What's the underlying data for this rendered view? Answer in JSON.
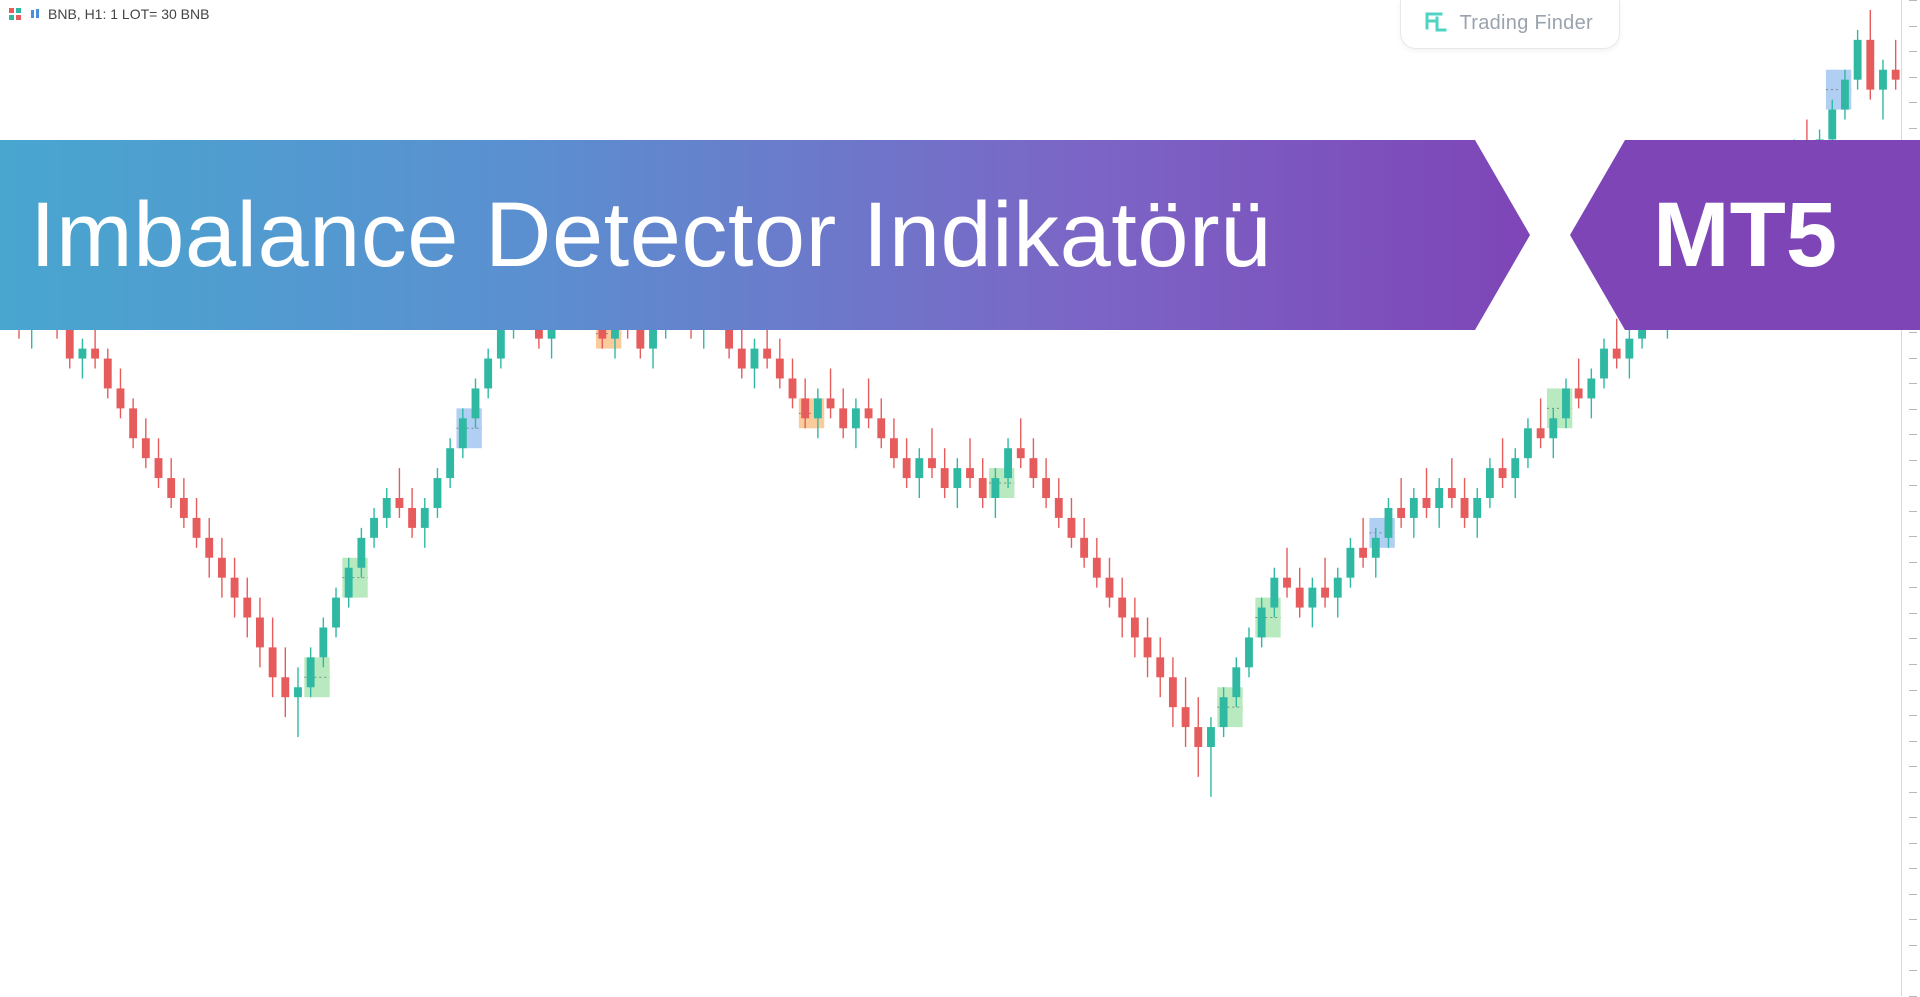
{
  "symbol_label": "BNB, H1:  1 LOT= 30 BNB",
  "brand_text": "Trading Finder",
  "title_main": "Imbalance Detector Indikatörü",
  "title_badge": "MT5",
  "chart": {
    "type": "candlestick",
    "background_color": "#ffffff",
    "bull_color": "#2fb9a3",
    "bear_color": "#e65b5b",
    "wick_bull": "#2fb9a3",
    "wick_bear": "#e65b5b",
    "zone_bull": "#7fd98a",
    "zone_bear": "#f5a34a",
    "zone_blue": "#6fa8e8",
    "axis_tick_color": "#b8b8b8",
    "y_min": 0,
    "y_max": 100,
    "candles": [
      {
        "o": 70,
        "h": 72,
        "l": 68,
        "c": 69
      },
      {
        "o": 69,
        "h": 70,
        "l": 66,
        "c": 67
      },
      {
        "o": 67,
        "h": 69,
        "l": 65,
        "c": 68
      },
      {
        "o": 68,
        "h": 71,
        "l": 67,
        "c": 70
      },
      {
        "o": 70,
        "h": 71,
        "l": 66,
        "c": 67
      },
      {
        "o": 67,
        "h": 68,
        "l": 63,
        "c": 64
      },
      {
        "o": 64,
        "h": 66,
        "l": 62,
        "c": 65
      },
      {
        "o": 65,
        "h": 67,
        "l": 63,
        "c": 64
      },
      {
        "o": 64,
        "h": 65,
        "l": 60,
        "c": 61
      },
      {
        "o": 61,
        "h": 63,
        "l": 58,
        "c": 59
      },
      {
        "o": 59,
        "h": 60,
        "l": 55,
        "c": 56
      },
      {
        "o": 56,
        "h": 58,
        "l": 53,
        "c": 54
      },
      {
        "o": 54,
        "h": 56,
        "l": 51,
        "c": 52
      },
      {
        "o": 52,
        "h": 54,
        "l": 49,
        "c": 50
      },
      {
        "o": 50,
        "h": 52,
        "l": 47,
        "c": 48
      },
      {
        "o": 48,
        "h": 50,
        "l": 45,
        "c": 46
      },
      {
        "o": 46,
        "h": 48,
        "l": 42,
        "c": 44
      },
      {
        "o": 44,
        "h": 46,
        "l": 40,
        "c": 42
      },
      {
        "o": 42,
        "h": 44,
        "l": 38,
        "c": 40
      },
      {
        "o": 40,
        "h": 42,
        "l": 36,
        "c": 38
      },
      {
        "o": 38,
        "h": 40,
        "l": 33,
        "c": 35
      },
      {
        "o": 35,
        "h": 38,
        "l": 30,
        "c": 32
      },
      {
        "o": 32,
        "h": 35,
        "l": 28,
        "c": 30
      },
      {
        "o": 30,
        "h": 33,
        "l": 26,
        "c": 31
      },
      {
        "o": 31,
        "h": 35,
        "l": 30,
        "c": 34
      },
      {
        "o": 34,
        "h": 38,
        "l": 33,
        "c": 37
      },
      {
        "o": 37,
        "h": 41,
        "l": 36,
        "c": 40
      },
      {
        "o": 40,
        "h": 44,
        "l": 39,
        "c": 43
      },
      {
        "o": 43,
        "h": 47,
        "l": 42,
        "c": 46
      },
      {
        "o": 46,
        "h": 49,
        "l": 45,
        "c": 48
      },
      {
        "o": 48,
        "h": 51,
        "l": 47,
        "c": 50
      },
      {
        "o": 50,
        "h": 53,
        "l": 48,
        "c": 49
      },
      {
        "o": 49,
        "h": 51,
        "l": 46,
        "c": 47
      },
      {
        "o": 47,
        "h": 50,
        "l": 45,
        "c": 49
      },
      {
        "o": 49,
        "h": 53,
        "l": 48,
        "c": 52
      },
      {
        "o": 52,
        "h": 56,
        "l": 51,
        "c": 55
      },
      {
        "o": 55,
        "h": 59,
        "l": 54,
        "c": 58
      },
      {
        "o": 58,
        "h": 62,
        "l": 57,
        "c": 61
      },
      {
        "o": 61,
        "h": 65,
        "l": 60,
        "c": 64
      },
      {
        "o": 64,
        "h": 68,
        "l": 63,
        "c": 67
      },
      {
        "o": 67,
        "h": 70,
        "l": 66,
        "c": 69
      },
      {
        "o": 69,
        "h": 72,
        "l": 67,
        "c": 68
      },
      {
        "o": 68,
        "h": 70,
        "l": 65,
        "c": 66
      },
      {
        "o": 66,
        "h": 69,
        "l": 64,
        "c": 68
      },
      {
        "o": 68,
        "h": 72,
        "l": 67,
        "c": 71
      },
      {
        "o": 71,
        "h": 74,
        "l": 69,
        "c": 70
      },
      {
        "o": 70,
        "h": 72,
        "l": 67,
        "c": 68
      },
      {
        "o": 68,
        "h": 70,
        "l": 65,
        "c": 66
      },
      {
        "o": 66,
        "h": 69,
        "l": 64,
        "c": 68
      },
      {
        "o": 68,
        "h": 71,
        "l": 66,
        "c": 67
      },
      {
        "o": 67,
        "h": 69,
        "l": 64,
        "c": 65
      },
      {
        "o": 65,
        "h": 68,
        "l": 63,
        "c": 67
      },
      {
        "o": 67,
        "h": 71,
        "l": 66,
        "c": 70
      },
      {
        "o": 70,
        "h": 73,
        "l": 68,
        "c": 69
      },
      {
        "o": 69,
        "h": 71,
        "l": 66,
        "c": 67
      },
      {
        "o": 67,
        "h": 70,
        "l": 65,
        "c": 69
      },
      {
        "o": 69,
        "h": 72,
        "l": 67,
        "c": 68
      },
      {
        "o": 68,
        "h": 70,
        "l": 64,
        "c": 65
      },
      {
        "o": 65,
        "h": 67,
        "l": 62,
        "c": 63
      },
      {
        "o": 63,
        "h": 66,
        "l": 61,
        "c": 65
      },
      {
        "o": 65,
        "h": 68,
        "l": 63,
        "c": 64
      },
      {
        "o": 64,
        "h": 66,
        "l": 61,
        "c": 62
      },
      {
        "o": 62,
        "h": 64,
        "l": 59,
        "c": 60
      },
      {
        "o": 60,
        "h": 62,
        "l": 57,
        "c": 58
      },
      {
        "o": 58,
        "h": 61,
        "l": 56,
        "c": 60
      },
      {
        "o": 60,
        "h": 63,
        "l": 58,
        "c": 59
      },
      {
        "o": 59,
        "h": 61,
        "l": 56,
        "c": 57
      },
      {
        "o": 57,
        "h": 60,
        "l": 55,
        "c": 59
      },
      {
        "o": 59,
        "h": 62,
        "l": 57,
        "c": 58
      },
      {
        "o": 58,
        "h": 60,
        "l": 55,
        "c": 56
      },
      {
        "o": 56,
        "h": 58,
        "l": 53,
        "c": 54
      },
      {
        "o": 54,
        "h": 56,
        "l": 51,
        "c": 52
      },
      {
        "o": 52,
        "h": 55,
        "l": 50,
        "c": 54
      },
      {
        "o": 54,
        "h": 57,
        "l": 52,
        "c": 53
      },
      {
        "o": 53,
        "h": 55,
        "l": 50,
        "c": 51
      },
      {
        "o": 51,
        "h": 54,
        "l": 49,
        "c": 53
      },
      {
        "o": 53,
        "h": 56,
        "l": 51,
        "c": 52
      },
      {
        "o": 52,
        "h": 54,
        "l": 49,
        "c": 50
      },
      {
        "o": 50,
        "h": 53,
        "l": 48,
        "c": 52
      },
      {
        "o": 52,
        "h": 56,
        "l": 51,
        "c": 55
      },
      {
        "o": 55,
        "h": 58,
        "l": 53,
        "c": 54
      },
      {
        "o": 54,
        "h": 56,
        "l": 51,
        "c": 52
      },
      {
        "o": 52,
        "h": 54,
        "l": 49,
        "c": 50
      },
      {
        "o": 50,
        "h": 52,
        "l": 47,
        "c": 48
      },
      {
        "o": 48,
        "h": 50,
        "l": 45,
        "c": 46
      },
      {
        "o": 46,
        "h": 48,
        "l": 43,
        "c": 44
      },
      {
        "o": 44,
        "h": 46,
        "l": 41,
        "c": 42
      },
      {
        "o": 42,
        "h": 44,
        "l": 39,
        "c": 40
      },
      {
        "o": 40,
        "h": 42,
        "l": 36,
        "c": 38
      },
      {
        "o": 38,
        "h": 40,
        "l": 34,
        "c": 36
      },
      {
        "o": 36,
        "h": 38,
        "l": 32,
        "c": 34
      },
      {
        "o": 34,
        "h": 36,
        "l": 30,
        "c": 32
      },
      {
        "o": 32,
        "h": 34,
        "l": 27,
        "c": 29
      },
      {
        "o": 29,
        "h": 32,
        "l": 25,
        "c": 27
      },
      {
        "o": 27,
        "h": 30,
        "l": 22,
        "c": 25
      },
      {
        "o": 25,
        "h": 28,
        "l": 20,
        "c": 27
      },
      {
        "o": 27,
        "h": 31,
        "l": 26,
        "c": 30
      },
      {
        "o": 30,
        "h": 34,
        "l": 29,
        "c": 33
      },
      {
        "o": 33,
        "h": 37,
        "l": 32,
        "c": 36
      },
      {
        "o": 36,
        "h": 40,
        "l": 35,
        "c": 39
      },
      {
        "o": 39,
        "h": 43,
        "l": 38,
        "c": 42
      },
      {
        "o": 42,
        "h": 45,
        "l": 40,
        "c": 41
      },
      {
        "o": 41,
        "h": 43,
        "l": 38,
        "c": 39
      },
      {
        "o": 39,
        "h": 42,
        "l": 37,
        "c": 41
      },
      {
        "o": 41,
        "h": 44,
        "l": 39,
        "c": 40
      },
      {
        "o": 40,
        "h": 43,
        "l": 38,
        "c": 42
      },
      {
        "o": 42,
        "h": 46,
        "l": 41,
        "c": 45
      },
      {
        "o": 45,
        "h": 48,
        "l": 43,
        "c": 44
      },
      {
        "o": 44,
        "h": 47,
        "l": 42,
        "c": 46
      },
      {
        "o": 46,
        "h": 50,
        "l": 45,
        "c": 49
      },
      {
        "o": 49,
        "h": 52,
        "l": 47,
        "c": 48
      },
      {
        "o": 48,
        "h": 51,
        "l": 46,
        "c": 50
      },
      {
        "o": 50,
        "h": 53,
        "l": 48,
        "c": 49
      },
      {
        "o": 49,
        "h": 52,
        "l": 47,
        "c": 51
      },
      {
        "o": 51,
        "h": 54,
        "l": 49,
        "c": 50
      },
      {
        "o": 50,
        "h": 52,
        "l": 47,
        "c": 48
      },
      {
        "o": 48,
        "h": 51,
        "l": 46,
        "c": 50
      },
      {
        "o": 50,
        "h": 54,
        "l": 49,
        "c": 53
      },
      {
        "o": 53,
        "h": 56,
        "l": 51,
        "c": 52
      },
      {
        "o": 52,
        "h": 55,
        "l": 50,
        "c": 54
      },
      {
        "o": 54,
        "h": 58,
        "l": 53,
        "c": 57
      },
      {
        "o": 57,
        "h": 60,
        "l": 55,
        "c": 56
      },
      {
        "o": 56,
        "h": 59,
        "l": 54,
        "c": 58
      },
      {
        "o": 58,
        "h": 62,
        "l": 57,
        "c": 61
      },
      {
        "o": 61,
        "h": 64,
        "l": 59,
        "c": 60
      },
      {
        "o": 60,
        "h": 63,
        "l": 58,
        "c": 62
      },
      {
        "o": 62,
        "h": 66,
        "l": 61,
        "c": 65
      },
      {
        "o": 65,
        "h": 68,
        "l": 63,
        "c": 64
      },
      {
        "o": 64,
        "h": 67,
        "l": 62,
        "c": 66
      },
      {
        "o": 66,
        "h": 70,
        "l": 65,
        "c": 69
      },
      {
        "o": 69,
        "h": 72,
        "l": 67,
        "c": 68
      },
      {
        "o": 68,
        "h": 71,
        "l": 66,
        "c": 70
      },
      {
        "o": 70,
        "h": 74,
        "l": 69,
        "c": 73
      },
      {
        "o": 73,
        "h": 76,
        "l": 71,
        "c": 72
      },
      {
        "o": 72,
        "h": 75,
        "l": 70,
        "c": 74
      },
      {
        "o": 74,
        "h": 78,
        "l": 73,
        "c": 77
      },
      {
        "o": 77,
        "h": 80,
        "l": 75,
        "c": 76
      },
      {
        "o": 76,
        "h": 79,
        "l": 74,
        "c": 78
      },
      {
        "o": 78,
        "h": 82,
        "l": 77,
        "c": 81
      },
      {
        "o": 81,
        "h": 84,
        "l": 79,
        "c": 80
      },
      {
        "o": 80,
        "h": 83,
        "l": 78,
        "c": 82
      },
      {
        "o": 82,
        "h": 86,
        "l": 81,
        "c": 85
      },
      {
        "o": 85,
        "h": 88,
        "l": 83,
        "c": 84
      },
      {
        "o": 84,
        "h": 87,
        "l": 82,
        "c": 86
      },
      {
        "o": 86,
        "h": 90,
        "l": 85,
        "c": 89
      },
      {
        "o": 89,
        "h": 93,
        "l": 88,
        "c": 92
      },
      {
        "o": 92,
        "h": 97,
        "l": 91,
        "c": 96
      },
      {
        "o": 96,
        "h": 99,
        "l": 90,
        "c": 91
      },
      {
        "o": 91,
        "h": 94,
        "l": 88,
        "c": 93
      },
      {
        "o": 93,
        "h": 96,
        "l": 91,
        "c": 92
      }
    ],
    "zones": [
      {
        "i": 24,
        "w": 2,
        "lo": 30,
        "hi": 34,
        "type": "bull"
      },
      {
        "i": 27,
        "w": 2,
        "lo": 40,
        "hi": 44,
        "type": "bull"
      },
      {
        "i": 36,
        "w": 2,
        "lo": 55,
        "hi": 59,
        "type": "blue"
      },
      {
        "i": 47,
        "w": 2,
        "lo": 65,
        "hi": 68,
        "type": "bear"
      },
      {
        "i": 63,
        "w": 2,
        "lo": 57,
        "hi": 60,
        "type": "bear"
      },
      {
        "i": 78,
        "w": 2,
        "lo": 50,
        "hi": 53,
        "type": "bull"
      },
      {
        "i": 96,
        "w": 2,
        "lo": 27,
        "hi": 31,
        "type": "bull"
      },
      {
        "i": 99,
        "w": 2,
        "lo": 36,
        "hi": 40,
        "type": "bull"
      },
      {
        "i": 108,
        "w": 2,
        "lo": 45,
        "hi": 48,
        "type": "blue"
      },
      {
        "i": 122,
        "w": 2,
        "lo": 57,
        "hi": 61,
        "type": "bull"
      },
      {
        "i": 131,
        "w": 2,
        "lo": 69,
        "hi": 73,
        "type": "blue"
      },
      {
        "i": 139,
        "w": 2,
        "lo": 81,
        "hi": 85,
        "type": "bull"
      },
      {
        "i": 144,
        "w": 2,
        "lo": 89,
        "hi": 93,
        "type": "blue"
      }
    ],
    "axis_ticks": 40
  }
}
